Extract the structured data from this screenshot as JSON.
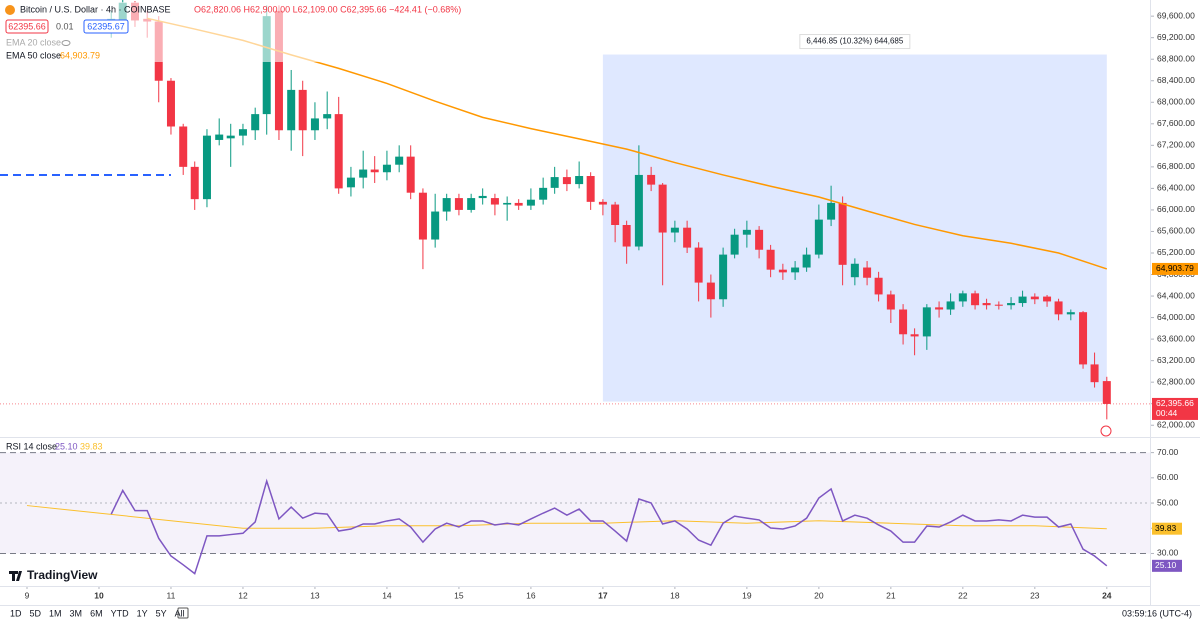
{
  "ui": {
    "symbol": "Bitcoin / U.S. Dollar · 4h · COINBASE",
    "ohlc": "O62,820.06 H62,900.00 L62,109.00 C62,395.66 −424.41 (−0.68%)",
    "sell": "62395.66",
    "spread": "0.01",
    "buy": "62395.67",
    "ema20": "EMA 20 close",
    "logo": "TradingView",
    "timeframes": [
      "1D",
      "5D",
      "1M",
      "3M",
      "6M",
      "YTD",
      "1Y",
      "5Y",
      "All"
    ],
    "clock": "03:59:16 (UTC-4)"
  },
  "chart_data": [
    {
      "type": "candlestick",
      "title": "Bitcoin / U.S. Dollar · 4h · COINBASE",
      "up_color": "#089981",
      "down_color": "#f23645",
      "x": [
        10.17,
        10.33,
        10.5,
        10.67,
        10.83,
        11,
        11.17,
        11.33,
        11.5,
        11.67,
        11.83,
        12,
        12.17,
        12.33,
        12.5,
        12.67,
        12.83,
        13,
        13.17,
        13.33,
        13.5,
        13.67,
        13.83,
        14,
        14.17,
        14.33,
        14.5,
        14.67,
        14.83,
        15,
        15.17,
        15.33,
        15.5,
        15.67,
        15.83,
        16,
        16.17,
        16.33,
        16.5,
        16.67,
        16.83,
        17,
        17.17,
        17.33,
        17.5,
        17.67,
        17.83,
        18,
        18.17,
        18.33,
        18.5,
        18.67,
        18.83,
        19,
        19.17,
        19.33,
        19.5,
        19.67,
        19.83,
        20,
        20.17,
        20.33,
        20.5,
        20.67,
        20.83,
        21,
        21.17,
        21.33,
        21.5,
        21.67,
        21.83,
        22,
        22.17,
        22.33,
        22.5,
        22.67,
        22.83,
        23,
        23.17,
        23.33,
        23.5,
        23.67,
        23.83,
        24
      ],
      "open": [
        69450,
        69500,
        69850,
        69550,
        69500,
        68400,
        67550,
        66800,
        66200,
        67300,
        67330,
        67380,
        67480,
        67780,
        69700,
        67480,
        68230,
        67480,
        67700,
        67780,
        66420,
        66600,
        66750,
        66700,
        66840,
        66990,
        66320,
        65450,
        65970,
        66220,
        66000,
        66220,
        66220,
        66100,
        66130,
        66080,
        66190,
        66410,
        66610,
        66480,
        66630,
        66150,
        66100,
        65720,
        65320,
        66650,
        66470,
        65580,
        65670,
        65300,
        64650,
        64340,
        65170,
        65540,
        65630,
        65260,
        64890,
        64840,
        64930,
        65170,
        65820,
        66130,
        64750,
        64930,
        64740,
        64430,
        64150,
        63690,
        63650,
        64190,
        64150,
        64300,
        64450,
        64270,
        64240,
        64230,
        64270,
        64390,
        64390,
        64300,
        64060,
        64100,
        63130,
        62820
      ],
      "high": [
        69700,
        69900,
        69880,
        69700,
        69600,
        68450,
        67600,
        66900,
        67500,
        67700,
        67600,
        67600,
        67900,
        69800,
        69800,
        68600,
        68400,
        68000,
        68200,
        68100,
        66800,
        67100,
        67000,
        67100,
        67200,
        67200,
        66400,
        66300,
        66300,
        66300,
        66300,
        66400,
        66300,
        66250,
        66200,
        66400,
        66600,
        66800,
        66750,
        66900,
        66700,
        66200,
        66150,
        65800,
        67200,
        66800,
        66500,
        65800,
        65800,
        65400,
        64800,
        65300,
        65650,
        65800,
        65700,
        65350,
        65000,
        65050,
        65300,
        66100,
        66450,
        66250,
        65100,
        65050,
        64850,
        64500,
        64250,
        63800,
        64250,
        64300,
        64450,
        64500,
        64500,
        64350,
        64300,
        64380,
        64500,
        64450,
        64420,
        64350,
        64150,
        64120,
        63350,
        62900
      ],
      "low": [
        69200,
        69300,
        69400,
        69200,
        68000,
        67400,
        66650,
        66000,
        66050,
        67200,
        66800,
        67200,
        67300,
        67400,
        67300,
        67100,
        67000,
        67300,
        67500,
        66300,
        66250,
        66400,
        66500,
        66550,
        66700,
        66200,
        64900,
        65300,
        65800,
        65900,
        65950,
        66100,
        65900,
        65800,
        66000,
        66000,
        66100,
        66300,
        66350,
        66400,
        66000,
        65900,
        65400,
        65000,
        65250,
        66350,
        64600,
        65400,
        65200,
        64300,
        64000,
        64200,
        65100,
        65300,
        65100,
        64750,
        64700,
        64700,
        64850,
        65100,
        65700,
        64600,
        64600,
        64600,
        64300,
        63900,
        63500,
        63300,
        63400,
        64000,
        64050,
        64200,
        64150,
        64150,
        64150,
        64150,
        64200,
        64250,
        64200,
        63950,
        63950,
        63050,
        62700,
        62109
      ],
      "close": [
        69550,
        69850,
        69520,
        69500,
        68400,
        67550,
        66800,
        66200,
        67380,
        67400,
        67380,
        67500,
        67780,
        69600,
        67480,
        68230,
        67480,
        67700,
        67780,
        66400,
        66600,
        66750,
        66700,
        66840,
        66990,
        66320,
        65450,
        65970,
        66220,
        66000,
        66220,
        66260,
        66100,
        66130,
        66080,
        66190,
        66410,
        66610,
        66480,
        66630,
        66150,
        66100,
        65720,
        65320,
        66650,
        66470,
        65580,
        65670,
        65300,
        64650,
        64340,
        65170,
        65540,
        65630,
        65260,
        64890,
        64840,
        64930,
        65170,
        65820,
        66130,
        64980,
        65000,
        64740,
        64430,
        64150,
        63690,
        63650,
        64190,
        64150,
        64300,
        64450,
        64230,
        64230,
        64220,
        64270,
        64390,
        64340,
        64300,
        64060,
        64100,
        63130,
        62800,
        62395.66
      ],
      "series": [
        {
          "name": "EMA 50 close",
          "color": "#ff9800",
          "value_label": "64,903.79",
          "x": [
            10.67,
            11.33,
            12,
            12.67,
            13.33,
            14,
            14.67,
            15.33,
            16,
            16.67,
            17.33,
            18,
            18.67,
            19.33,
            20,
            20.67,
            21.33,
            22,
            22.67,
            23.33,
            24
          ],
          "values": [
            69560,
            69360,
            69150,
            68880,
            68630,
            68350,
            68020,
            67720,
            67510,
            67320,
            67130,
            66880,
            66650,
            66440,
            66240,
            65980,
            65730,
            65520,
            65380,
            65200,
            64903.79
          ]
        }
      ],
      "hline": {
        "value": 66650,
        "x_end": 11,
        "color": "#2962ff"
      },
      "range_box": {
        "x": [
          17,
          24
        ],
        "y": [
          62440,
          68887
        ],
        "label": "6,446.85 (10.32%) 644,685"
      },
      "last": {
        "value": 62395.66,
        "label": "62,395.66",
        "countdown": "00:44"
      },
      "xlim": [
        8.625,
        24.6
      ],
      "xticks": [
        9,
        10,
        11,
        12,
        13,
        14,
        15,
        16,
        17,
        18,
        19,
        20,
        21,
        22,
        23,
        24
      ],
      "bold_xticks": [
        10,
        17,
        24
      ],
      "ylim": [
        61800,
        69900
      ],
      "yticks": [
        {
          "value": 62000,
          "label": "62,000.00"
        },
        {
          "value": 62400,
          "label": "62,400.00"
        },
        {
          "value": 62800,
          "label": "62,800.00"
        },
        {
          "value": 63200,
          "label": "63,200.00"
        },
        {
          "value": 63600,
          "label": "63,600.00"
        },
        {
          "value": 64000,
          "label": "64,000.00"
        },
        {
          "value": 64400,
          "label": "64,400.00"
        },
        {
          "value": 64800,
          "label": "64,800.00"
        },
        {
          "value": 65200,
          "label": "65,200.00"
        },
        {
          "value": 65600,
          "label": "65,600.00"
        },
        {
          "value": 66000,
          "label": "66,000.00"
        },
        {
          "value": 66400,
          "label": "66,400.00"
        },
        {
          "value": 66800,
          "label": "66,800.00"
        },
        {
          "value": 67200,
          "label": "67,200.00"
        },
        {
          "value": 67600,
          "label": "67,600.00"
        },
        {
          "value": 68000,
          "label": "68,000.00"
        },
        {
          "value": 68400,
          "label": "68,400.00"
        },
        {
          "value": 68800,
          "label": "68,800.00"
        },
        {
          "value": 69200,
          "label": "69,200.00"
        },
        {
          "value": 69600,
          "label": "69,600.00"
        }
      ],
      "grid": false
    },
    {
      "type": "line",
      "band": [
        30,
        70
      ],
      "band_color": "#7e57c2",
      "series": [
        {
          "name": "RSI 14 close",
          "color": "#7e57c2",
          "value_label": "25.10",
          "x": [
            10.17,
            10.33,
            10.5,
            10.67,
            10.83,
            11,
            11.17,
            11.33,
            11.5,
            11.67,
            11.83,
            12,
            12.17,
            12.33,
            12.5,
            12.67,
            12.83,
            13,
            13.17,
            13.33,
            13.5,
            13.67,
            13.83,
            14,
            14.17,
            14.33,
            14.5,
            14.67,
            14.83,
            15,
            15.17,
            15.33,
            15.5,
            15.67,
            15.83,
            16,
            16.17,
            16.33,
            16.5,
            16.67,
            16.83,
            17,
            17.17,
            17.33,
            17.5,
            17.67,
            17.83,
            18,
            18.17,
            18.33,
            18.5,
            18.67,
            18.83,
            19,
            19.17,
            19.33,
            19.5,
            19.67,
            19.83,
            20,
            20.17,
            20.33,
            20.5,
            20.67,
            20.83,
            21,
            21.17,
            21.33,
            21.5,
            21.67,
            21.83,
            22,
            22.17,
            22.33,
            22.5,
            22.67,
            22.83,
            23,
            23.17,
            23.33,
            23.5,
            23.67,
            23.83,
            24
          ],
          "values": [
            45.6,
            55,
            47,
            47,
            36,
            29,
            25.5,
            22,
            37,
            37,
            37.5,
            38,
            42.5,
            58.7,
            43.7,
            48.4,
            44,
            46,
            45.6,
            38.9,
            39.7,
            41.7,
            41.7,
            42.9,
            43.7,
            40.5,
            34.5,
            39.7,
            42,
            40.5,
            42.9,
            42.9,
            41.3,
            42,
            41.3,
            43.7,
            46,
            48,
            45.2,
            47.6,
            42.9,
            42.9,
            38.9,
            34.9,
            51.6,
            50,
            41.7,
            42.9,
            39.7,
            35.3,
            33.3,
            42,
            44.8,
            44,
            43.3,
            40.1,
            39.7,
            40.9,
            44,
            52,
            55.6,
            42.9,
            45.2,
            44,
            41.3,
            38.9,
            34.5,
            34.5,
            40.9,
            40.5,
            42.5,
            45.2,
            42.9,
            42.9,
            43.3,
            42.9,
            45.2,
            44.4,
            44.4,
            40.5,
            41.7,
            31.7,
            29,
            25.1
          ]
        },
        {
          "color": "#fbc02d",
          "value_label": "39.83",
          "x": [
            9,
            10,
            11,
            12,
            13,
            14,
            15,
            16,
            17,
            18,
            19,
            20,
            21,
            22,
            23,
            24
          ],
          "values": [
            49,
            46,
            43,
            40,
            40,
            41,
            41,
            42,
            42,
            43,
            42,
            43,
            42,
            41,
            41,
            39.83
          ]
        }
      ],
      "xlim": [
        8.625,
        24.6
      ],
      "ylim": [
        17.5,
        75
      ],
      "yticks": [
        {
          "value": 30,
          "label": "30.00"
        },
        {
          "value": 40,
          "label": "40.00"
        },
        {
          "value": 50,
          "label": "50.00"
        },
        {
          "value": 60,
          "label": "60.00"
        },
        {
          "value": 70,
          "label": "70.00"
        }
      ],
      "dashed_yticks": [
        30,
        70
      ]
    }
  ]
}
